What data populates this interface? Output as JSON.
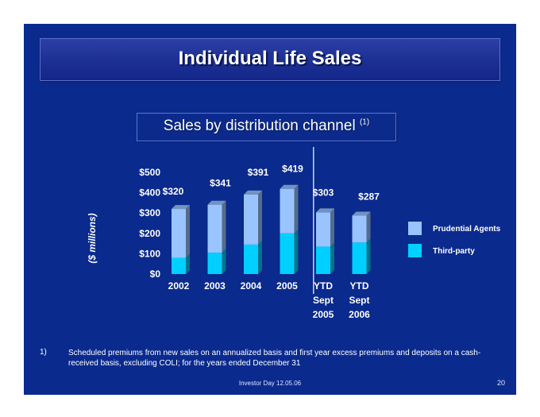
{
  "slide": {
    "title": "Individual Life Sales",
    "subtitle": "Sales by distribution channel",
    "subtitle_ref": "(1)",
    "footnote_marker": "1)",
    "footnote": "Scheduled premiums from new sales on an annualized basis and first year excess premiums and deposits on a cash-received basis, excluding COLI; for the years ended December 31",
    "footer": "Investor Day 12.05.06",
    "page_number": "20"
  },
  "colors": {
    "background": "#0a2a8e",
    "prudential_agents": "#99c4ff",
    "third_party": "#00d0ff"
  },
  "chart_data": {
    "type": "bar",
    "stacked": true,
    "categories": [
      "2002",
      "2003",
      "2004",
      "2005",
      "YTD\nSept\n2005",
      "YTD\nSept\n2006"
    ],
    "totals": [
      320,
      341,
      391,
      419,
      303,
      287
    ],
    "total_labels": [
      "$320",
      "$341",
      "$391",
      "$419",
      "$303",
      "$287"
    ],
    "series": [
      {
        "name": "Third-party",
        "values": [
          80,
          105,
          145,
          200,
          135,
          155
        ]
      },
      {
        "name": "Prudential Agents",
        "values": [
          240,
          236,
          246,
          219,
          168,
          132
        ]
      }
    ],
    "ylabel": "($ millions)",
    "yticks": [
      0,
      100,
      200,
      300,
      400,
      500
    ],
    "ytick_labels": [
      "$0",
      "$100",
      "$200",
      "$300",
      "$400",
      "$500"
    ],
    "ylim": [
      0,
      500
    ],
    "legend": [
      "Prudential Agents",
      "Third-party"
    ],
    "legend_position": "right",
    "divider_between": [
      "2005",
      "YTD Sept 2005"
    ],
    "grid": false
  }
}
